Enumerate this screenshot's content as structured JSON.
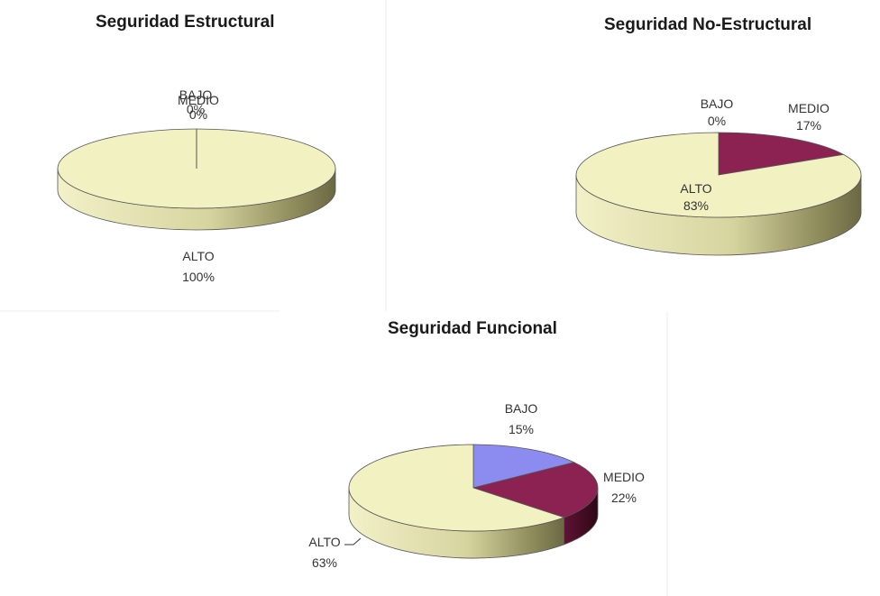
{
  "chart_data": [
    {
      "type": "pie",
      "title": "Seguridad Estructural",
      "slices": [
        {
          "label": "BAJO",
          "value": 0,
          "pct_label": "0%",
          "color": "#8c8cf0"
        },
        {
          "label": "MEDIO",
          "value": 0,
          "pct_label": "0%",
          "color": "#8b2252"
        },
        {
          "label": "ALTO",
          "value": 100,
          "pct_label": "100%",
          "color": "#f2f1c2"
        }
      ]
    },
    {
      "type": "pie",
      "title": "Seguridad No-Estructural",
      "slices": [
        {
          "label": "BAJO",
          "value": 0,
          "pct_label": "0%",
          "color": "#8c8cf0"
        },
        {
          "label": "MEDIO",
          "value": 17,
          "pct_label": "17%",
          "color": "#8b2252"
        },
        {
          "label": "ALTO",
          "value": 83,
          "pct_label": "83%",
          "color": "#f2f1c2"
        }
      ]
    },
    {
      "type": "pie",
      "title": "Seguridad Funcional",
      "slices": [
        {
          "label": "BAJO",
          "value": 15,
          "pct_label": "15%",
          "color": "#8c8cf0"
        },
        {
          "label": "MEDIO",
          "value": 22,
          "pct_label": "22%",
          "color": "#8b2252"
        },
        {
          "label": "ALTO",
          "value": 63,
          "pct_label": "63%",
          "color": "#f2f1c2"
        }
      ]
    }
  ]
}
